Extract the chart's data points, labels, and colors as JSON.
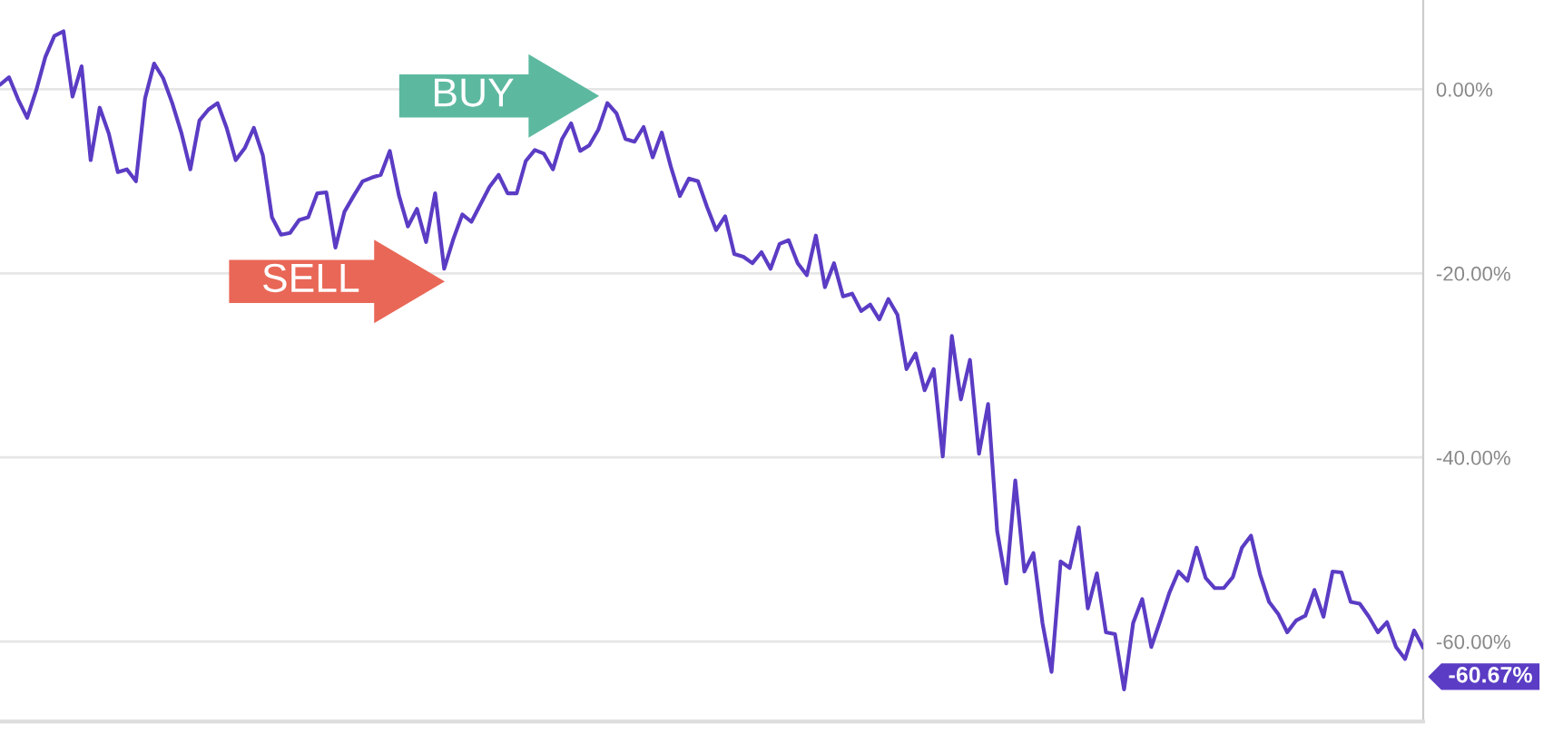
{
  "chart_data": {
    "type": "line",
    "color": "#5b3cc4",
    "categories": [
      null,
      null,
      null,
      null,
      null,
      null,
      null,
      null,
      null,
      null,
      null,
      null,
      null,
      null,
      null,
      null,
      null,
      null,
      null,
      null,
      null,
      null,
      null,
      null,
      null,
      null,
      null,
      null,
      null,
      null,
      null,
      null,
      null,
      null,
      null,
      null,
      null,
      null,
      null,
      null,
      null,
      null,
      null,
      null,
      null,
      null,
      null,
      null,
      null,
      null,
      null,
      null,
      null,
      null,
      null,
      null,
      null,
      null,
      null,
      null,
      null,
      null,
      null,
      null,
      null,
      null,
      null,
      null,
      null,
      null,
      null,
      null,
      null,
      null,
      null,
      null,
      null,
      null,
      null,
      null,
      null,
      null,
      null,
      null,
      null,
      null,
      null,
      null,
      null,
      null,
      null,
      null,
      null,
      null,
      null,
      null,
      null,
      null,
      null,
      null,
      null,
      null,
      null,
      null,
      null,
      null,
      null,
      null,
      null,
      null,
      null,
      null,
      null,
      null,
      null,
      null,
      null,
      null,
      null,
      null,
      null,
      null,
      null,
      null,
      null,
      null,
      null,
      null,
      null,
      null,
      null,
      null,
      null,
      null,
      null,
      null,
      null,
      null,
      null,
      null,
      null,
      null,
      null,
      null,
      null,
      null,
      null,
      null,
      null,
      null,
      null,
      null,
      null,
      null,
      null,
      null,
      null,
      null
    ],
    "values": [
      0.5,
      1.3,
      -1.1,
      -3.1,
      -0.1,
      3.5,
      5.8,
      6.3,
      -0.8,
      2.5,
      -7.7,
      -2.0,
      -4.8,
      -9.0,
      -8.7,
      -10.0,
      -1.0,
      2.8,
      1.2,
      -1.5,
      -4.7,
      -8.7,
      -3.4,
      -2.2,
      -1.5,
      -4.2,
      -7.7,
      -6.4,
      -4.2,
      -7.2,
      -13.9,
      -15.8,
      -15.6,
      -14.2,
      -13.9,
      -11.3,
      -11.2,
      -17.2,
      -13.3,
      -11.6,
      -10.0,
      -9.6,
      -9.3,
      -6.7,
      -11.5,
      -14.9,
      -13.0,
      -16.6,
      -11.3,
      -19.5,
      -16.3,
      -13.6,
      -14.4,
      -12.5,
      -10.6,
      -9.3,
      -11.3,
      -11.3,
      -7.8,
      -6.6,
      -7.0,
      -8.7,
      -5.4,
      -3.7,
      -6.7,
      -6.1,
      -4.4,
      -1.5,
      -2.6,
      -5.4,
      -5.7,
      -4.1,
      -7.4,
      -4.7,
      -8.4,
      -11.6,
      -9.7,
      -10.0,
      -12.8,
      -15.3,
      -13.8,
      -17.9,
      -18.2,
      -18.9,
      -17.7,
      -19.5,
      -16.8,
      -16.4,
      -18.9,
      -20.2,
      -15.9,
      -21.5,
      -18.9,
      -22.5,
      -22.2,
      -24.1,
      -23.4,
      -25.0,
      -22.8,
      -24.5,
      -30.4,
      -28.7,
      -32.7,
      -30.4,
      -39.9,
      -26.8,
      -33.7,
      -29.4,
      -39.6,
      -34.2,
      -48.0,
      -53.7,
      -42.5,
      -52.4,
      -50.4,
      -58.0,
      -63.3,
      -51.3,
      -52.0,
      -47.6,
      -56.4,
      -52.6,
      -59.0,
      -59.2,
      -65.2,
      -58.0,
      -55.4,
      -60.6,
      -57.7,
      -54.7,
      -52.4,
      -53.4,
      -49.8,
      -53.1,
      -54.2,
      -54.2,
      -53.0,
      -49.8,
      -48.5,
      -52.7,
      -55.7,
      -57.0,
      -59.0,
      -57.7,
      -57.2,
      -54.4,
      -57.3,
      -52.4,
      -52.5,
      -55.7,
      -55.9,
      -57.3,
      -59.0,
      -57.9,
      -60.6,
      -61.9,
      -58.8,
      -60.67
    ],
    "value_labels": [
      null,
      null,
      null,
      null,
      null,
      null,
      null,
      null,
      null,
      null,
      null,
      null,
      null,
      null,
      null,
      null,
      null,
      null,
      null,
      null,
      null,
      null,
      null,
      null,
      null,
      null,
      null,
      null,
      null,
      null,
      null,
      null,
      null,
      null,
      null,
      null,
      null,
      null,
      null,
      null,
      null,
      null,
      null,
      null,
      null,
      null,
      null,
      null,
      null,
      null,
      null,
      null,
      null,
      null,
      null,
      null,
      null,
      null,
      null,
      null,
      null,
      null,
      null,
      null,
      null,
      null,
      null,
      null,
      null,
      null,
      null,
      null,
      null,
      null,
      null,
      null,
      null,
      null,
      null,
      null,
      null,
      null,
      null,
      null,
      null,
      null,
      null,
      null,
      null,
      null,
      null,
      null,
      null,
      null,
      null,
      null,
      null,
      null,
      null,
      null,
      null,
      null,
      null,
      null,
      null,
      null,
      null,
      null,
      null,
      null,
      null,
      null,
      null,
      null,
      null,
      null,
      null,
      null,
      null,
      null,
      null,
      null,
      null,
      null,
      null,
      null,
      null,
      null,
      null,
      null,
      null,
      null,
      null,
      null,
      null,
      null,
      null,
      null,
      null,
      null,
      null,
      null,
      null,
      null,
      null,
      null,
      null,
      null,
      null,
      null,
      null,
      null,
      null,
      null,
      null,
      null,
      null,
      "-60.67%"
    ],
    "ylim": [
      -68.7,
      9.7
    ],
    "yticks": [
      {
        "value": 0,
        "label": "0.00%"
      },
      {
        "value": -20,
        "label": "-20.00%"
      },
      {
        "value": -40,
        "label": "-40.00%"
      },
      {
        "value": -60,
        "label": "-60.00%"
      }
    ],
    "tick_labels": "y",
    "grid": "y",
    "annotations": [
      "BUY",
      "SELL"
    ]
  }
}
